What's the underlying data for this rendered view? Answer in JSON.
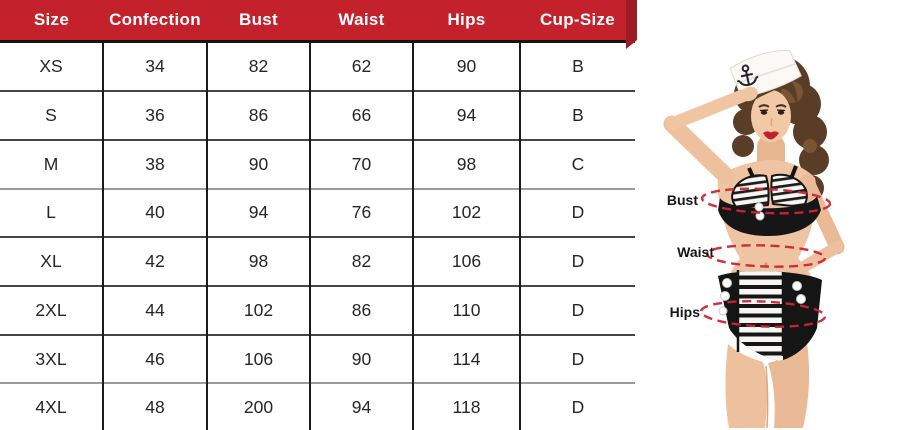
{
  "chart_data": {
    "type": "table",
    "columns": [
      "Size",
      "Confection",
      "Bust",
      "Waist",
      "Hips",
      "Cup-Size"
    ],
    "rows": [
      [
        "XS",
        "34",
        "82",
        "62",
        "90",
        "B"
      ],
      [
        "S",
        "36",
        "86",
        "66",
        "94",
        "B"
      ],
      [
        "M",
        "38",
        "90",
        "70",
        "98",
        "C"
      ],
      [
        "L",
        "40",
        "94",
        "76",
        "102",
        "D"
      ],
      [
        "XL",
        "42",
        "98",
        "82",
        "106",
        "D"
      ],
      [
        "2XL",
        "44",
        "102",
        "86",
        "110",
        "D"
      ],
      [
        "3XL",
        "46",
        "106",
        "90",
        "114",
        "D"
      ],
      [
        "4XL",
        "48",
        "200",
        "94",
        "118",
        "D"
      ]
    ]
  },
  "figure": {
    "bust_label": "Bust",
    "waist_label": "Waist",
    "hips_label": "Hips"
  },
  "colors": {
    "header_red": "#c3222c",
    "header_red_dark": "#9d1c24",
    "dash_red": "#ce2533"
  }
}
